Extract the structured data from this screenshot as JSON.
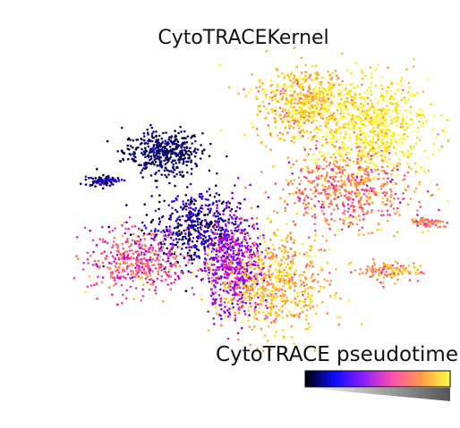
{
  "chart_data": {
    "type": "scatter",
    "title": "CytoTRACEKernel",
    "xlabel": "",
    "ylabel": "",
    "axes_visible": false,
    "grid": false,
    "color_variable": "CytoTRACE pseudotime",
    "color_range": [
      0,
      1
    ],
    "colormap": [
      "#0d0887",
      "#000000",
      "#1400ff",
      "#7a00ff",
      "#d100d1",
      "#ff4f8a",
      "#ff9a3c",
      "#ffe300",
      "#ffff44"
    ],
    "legend": {
      "label": "CytoTRACE pseudotime",
      "placement": "bottom-right",
      "gradient_colors": [
        "#000000",
        "#0c0cff",
        "#8a1cff",
        "#ff4fae",
        "#ff9a4a",
        "#ffff40"
      ],
      "wedge_colors": [
        "#ffffff",
        "#555555"
      ]
    },
    "clusters": [
      {
        "name": "",
        "center": [
          -3.1,
          2.4
        ],
        "pseudotime": 0.02
      },
      {
        "name": "",
        "center": [
          -5.4,
          1.3
        ],
        "pseudotime": 0.18
      },
      {
        "name": "",
        "center": [
          -1.8,
          -0.6
        ],
        "pseudotime": 0.2
      },
      {
        "name": "",
        "center": [
          -4.1,
          -1.8
        ],
        "pseudotime": 0.62
      },
      {
        "name": "",
        "center": [
          -0.4,
          -2.0
        ],
        "pseudotime": 0.45
      },
      {
        "name": "",
        "center": [
          1.2,
          -2.6
        ],
        "pseudotime": 0.8
      },
      {
        "name": "",
        "center": [
          2.3,
          4.3
        ],
        "pseudotime": 0.82
      },
      {
        "name": "",
        "center": [
          4.8,
          3.4
        ],
        "pseudotime": 0.92
      },
      {
        "name": "",
        "center": [
          3.9,
          0.9
        ],
        "pseudotime": 0.7
      },
      {
        "name": "",
        "center": [
          5.6,
          -2.2
        ],
        "pseudotime": 0.75
      },
      {
        "name": "",
        "center": [
          7.1,
          -0.3
        ],
        "pseudotime": 0.7
      }
    ]
  }
}
